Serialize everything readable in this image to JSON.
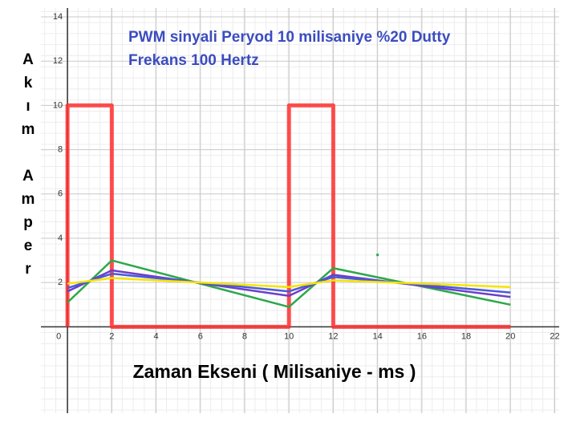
{
  "chart_data": {
    "type": "line",
    "title": [
      "PWM sinyali Peryod 10 milisaniye %20 Dutty",
      "Frekans 100 Hertz"
    ],
    "x_label": "Zaman Ekseni ( Milisaniye - ms )",
    "y_label": "Akım Amper",
    "xlim": [
      -1.2,
      22.2
    ],
    "ylim": [
      -3.9,
      14.4
    ],
    "xticks": [
      0,
      2,
      4,
      6,
      8,
      10,
      12,
      14,
      16,
      18,
      20,
      22
    ],
    "yticks": [
      2,
      4,
      6,
      8,
      10,
      12,
      14
    ],
    "grid": true,
    "series": [
      {
        "color": "#ff3030",
        "x": [
          0,
          0,
          2,
          2,
          10,
          10,
          12,
          12,
          20
        ],
        "values": [
          0,
          10,
          10,
          0,
          0,
          10,
          10,
          0,
          0
        ]
      },
      {
        "color": "#2ca84a",
        "x": [
          0,
          2,
          10,
          12,
          20
        ],
        "values": [
          1.1,
          3.0,
          0.9,
          2.65,
          1.0
        ]
      },
      {
        "color": "#6a3fc8",
        "x": [
          0,
          2,
          10,
          12,
          20
        ],
        "values": [
          1.6,
          2.55,
          1.4,
          2.35,
          1.35
        ]
      },
      {
        "color": "#4a5ad8",
        "x": [
          0,
          2,
          10,
          12,
          20
        ],
        "values": [
          1.75,
          2.4,
          1.6,
          2.25,
          1.55
        ]
      },
      {
        "color": "#f5e400",
        "x": [
          0,
          2,
          10,
          12,
          20
        ],
        "values": [
          1.95,
          2.2,
          1.8,
          2.1,
          1.8
        ]
      }
    ],
    "points": [
      {
        "x": 14,
        "y": 3.25,
        "color": "#2ca84a"
      }
    ]
  }
}
